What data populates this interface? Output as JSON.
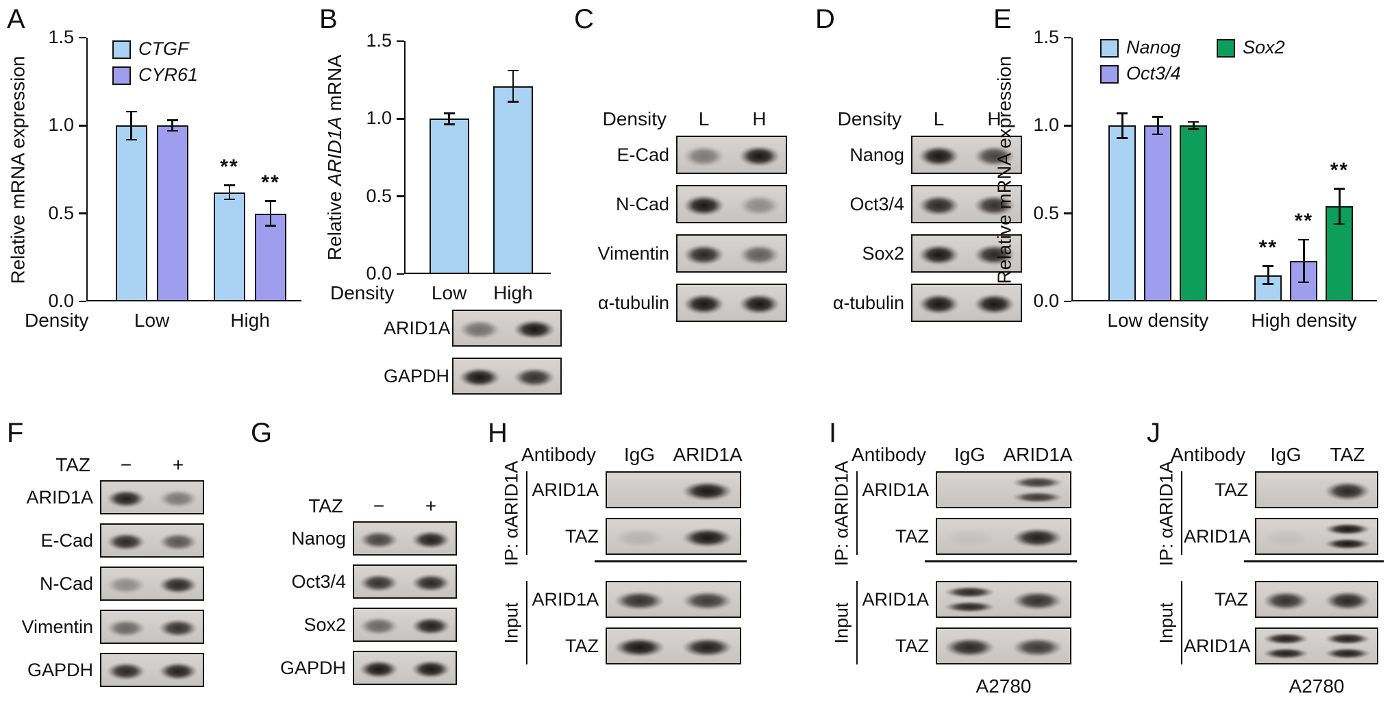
{
  "background": "#ffffff",
  "labels": {
    "A": "A",
    "B": "B",
    "C": "C",
    "D": "D",
    "E": "E",
    "F": "F",
    "G": "G",
    "H": "H",
    "I": "I",
    "J": "J"
  },
  "chart_data": [
    {
      "panel": "A",
      "type": "bar",
      "title": "",
      "ylabel": "Relative mRNA expression",
      "xlabel": "Density",
      "ylim": [
        0,
        1.5
      ],
      "yticks": [
        0,
        0.5,
        1.0,
        1.5
      ],
      "yticklabels": [
        "0.0",
        "0.5",
        "1.0",
        "1.5"
      ],
      "categories": [
        "Low",
        "High"
      ],
      "grid": false,
      "legend_position": "top-left",
      "series": [
        {
          "name": "CTGF",
          "color": "#a9d2f3",
          "values": [
            1.0,
            0.62
          ],
          "errors": [
            0.08,
            0.04
          ],
          "sig": [
            "",
            "**"
          ]
        },
        {
          "name": "CYR61",
          "color": "#9e9dee",
          "values": [
            1.0,
            0.5
          ],
          "errors": [
            0.03,
            0.07
          ],
          "sig": [
            "",
            "**"
          ]
        }
      ]
    },
    {
      "panel": "B",
      "type": "bar",
      "title": "",
      "ylabel_pre": "Relative ",
      "ylabel_italic": "ARID1A",
      "ylabel_post": " mRNA",
      "xlabel": "Density",
      "ylim": [
        0,
        1.5
      ],
      "yticks": [
        0,
        0.5,
        1.0,
        1.5
      ],
      "yticklabels": [
        "0.0",
        "0.5",
        "1.0",
        "1.5"
      ],
      "categories": [
        "Low",
        "High"
      ],
      "grid": false,
      "series": [
        {
          "name": "ARID1A",
          "color": "#a9d2f3",
          "values": [
            1.0,
            1.21
          ],
          "errors": [
            0.035,
            0.1
          ],
          "sig": [
            "",
            ""
          ]
        }
      ]
    },
    {
      "panel": "E",
      "type": "bar",
      "title": "",
      "ylabel": "Relative mRNA expression",
      "xlabel": "",
      "ylim": [
        0,
        1.5
      ],
      "yticks": [
        0,
        0.5,
        1.0,
        1.5
      ],
      "yticklabels": [
        "0.0",
        "0.5",
        "1.0",
        "1.5"
      ],
      "categories": [
        "Low density",
        "High density"
      ],
      "grid": false,
      "legend_position": "top-left",
      "series": [
        {
          "name": "Nanog",
          "color": "#a9d2f3",
          "values": [
            1.0,
            0.15
          ],
          "errors": [
            0.07,
            0.05
          ],
          "sig": [
            "",
            "**"
          ]
        },
        {
          "name": "Oct3/4",
          "color": "#9e9dee",
          "values": [
            1.0,
            0.23
          ],
          "errors": [
            0.05,
            0.12
          ],
          "sig": [
            "",
            "**"
          ]
        },
        {
          "name": "Sox2",
          "color": "#0d9e5b",
          "values": [
            1.0,
            0.54
          ],
          "errors": [
            0.02,
            0.1
          ],
          "sig": [
            "",
            "**"
          ]
        }
      ]
    }
  ],
  "blots": {
    "B": {
      "rows": [
        {
          "label": "ARID1A",
          "lanes": [
            0.5,
            1.0
          ]
        },
        {
          "label": "GAPDH",
          "lanes": [
            1.0,
            0.85
          ]
        }
      ]
    },
    "C": {
      "header": {
        "prefix": "Density",
        "lanes": [
          "L",
          "H"
        ]
      },
      "rows": [
        {
          "label": "E-Cad",
          "lanes": [
            0.45,
            1.0
          ]
        },
        {
          "label": "N-Cad",
          "lanes": [
            1.0,
            0.35
          ]
        },
        {
          "label": "Vimentin",
          "lanes": [
            0.9,
            0.6
          ]
        },
        {
          "label": "α-tubulin",
          "lanes": [
            1.0,
            1.0
          ]
        }
      ]
    },
    "D": {
      "header": {
        "prefix": "Density",
        "lanes": [
          "L",
          "H"
        ]
      },
      "rows": [
        {
          "label": "Nanog",
          "lanes": [
            1.0,
            0.75
          ]
        },
        {
          "label": "Oct3/4",
          "lanes": [
            0.9,
            0.85
          ]
        },
        {
          "label": "Sox2",
          "lanes": [
            1.0,
            0.9
          ]
        },
        {
          "label": "α-tubulin",
          "lanes": [
            1.0,
            1.0
          ]
        }
      ]
    },
    "F": {
      "header": {
        "prefix": "TAZ",
        "lanes": [
          "−",
          "+"
        ]
      },
      "rows": [
        {
          "label": "ARID1A",
          "lanes": [
            0.95,
            0.45
          ]
        },
        {
          "label": "E-Cad",
          "lanes": [
            0.9,
            0.65
          ]
        },
        {
          "label": "N-Cad",
          "lanes": [
            0.35,
            0.9
          ]
        },
        {
          "label": "Vimentin",
          "lanes": [
            0.55,
            0.85
          ]
        },
        {
          "label": "GAPDH",
          "lanes": [
            0.9,
            0.95
          ]
        }
      ]
    },
    "G": {
      "header": {
        "prefix": "TAZ",
        "lanes": [
          "−",
          "+"
        ]
      },
      "rows": [
        {
          "label": "Nanog",
          "lanes": [
            0.75,
            0.95
          ]
        },
        {
          "label": "Oct3/4",
          "lanes": [
            0.85,
            0.9
          ]
        },
        {
          "label": "Sox2",
          "lanes": [
            0.55,
            0.95
          ]
        },
        {
          "label": "GAPDH",
          "lanes": [
            1.0,
            1.0
          ]
        }
      ]
    },
    "H": {
      "header": {
        "prefix": "Antibody",
        "lanes": [
          "IgG",
          "ARID1A"
        ]
      },
      "sections": [
        {
          "side": "IP: αARID1A",
          "rows": [
            {
              "label": "ARID1A",
              "lanes": [
                0.03,
                1.0
              ]
            },
            {
              "label": "TAZ",
              "lanes": [
                0.12,
                1.0
              ]
            }
          ]
        },
        {
          "side": "Input",
          "rows": [
            {
              "label": "ARID1A",
              "lanes": [
                0.85,
                0.8
              ]
            },
            {
              "label": "TAZ",
              "lanes": [
                1.0,
                0.95
              ]
            }
          ]
        }
      ]
    },
    "I": {
      "header": {
        "prefix": "Antibody",
        "lanes": [
          "IgG",
          "ARID1A"
        ]
      },
      "footer": "A2780",
      "sections": [
        {
          "side": "IP: αARID1A",
          "rows": [
            {
              "label": "ARID1A",
              "lanes": [
                0.03,
                0.8
              ],
              "double": [
                false,
                true
              ]
            },
            {
              "label": "TAZ",
              "lanes": [
                0.05,
                0.95
              ]
            }
          ]
        },
        {
          "side": "Input",
          "rows": [
            {
              "label": "ARID1A",
              "lanes": [
                0.9,
                0.85
              ],
              "double": [
                true,
                false
              ]
            },
            {
              "label": "TAZ",
              "lanes": [
                0.9,
                0.8
              ]
            }
          ]
        }
      ]
    },
    "J": {
      "header": {
        "prefix": "Antibody",
        "lanes": [
          "IgG",
          "TAZ"
        ]
      },
      "footer": "A2780",
      "sections": [
        {
          "side": "IP: αARID1A",
          "rows": [
            {
              "label": "TAZ",
              "lanes": [
                0.04,
                0.9
              ]
            },
            {
              "label": "ARID1A",
              "lanes": [
                0.05,
                1.0
              ],
              "double": [
                false,
                true
              ]
            }
          ]
        },
        {
          "side": "Input",
          "rows": [
            {
              "label": "TAZ",
              "lanes": [
                0.85,
                0.9
              ]
            },
            {
              "label": "ARID1A",
              "lanes": [
                0.95,
                0.95
              ],
              "double": [
                true,
                true
              ]
            }
          ]
        }
      ]
    }
  }
}
